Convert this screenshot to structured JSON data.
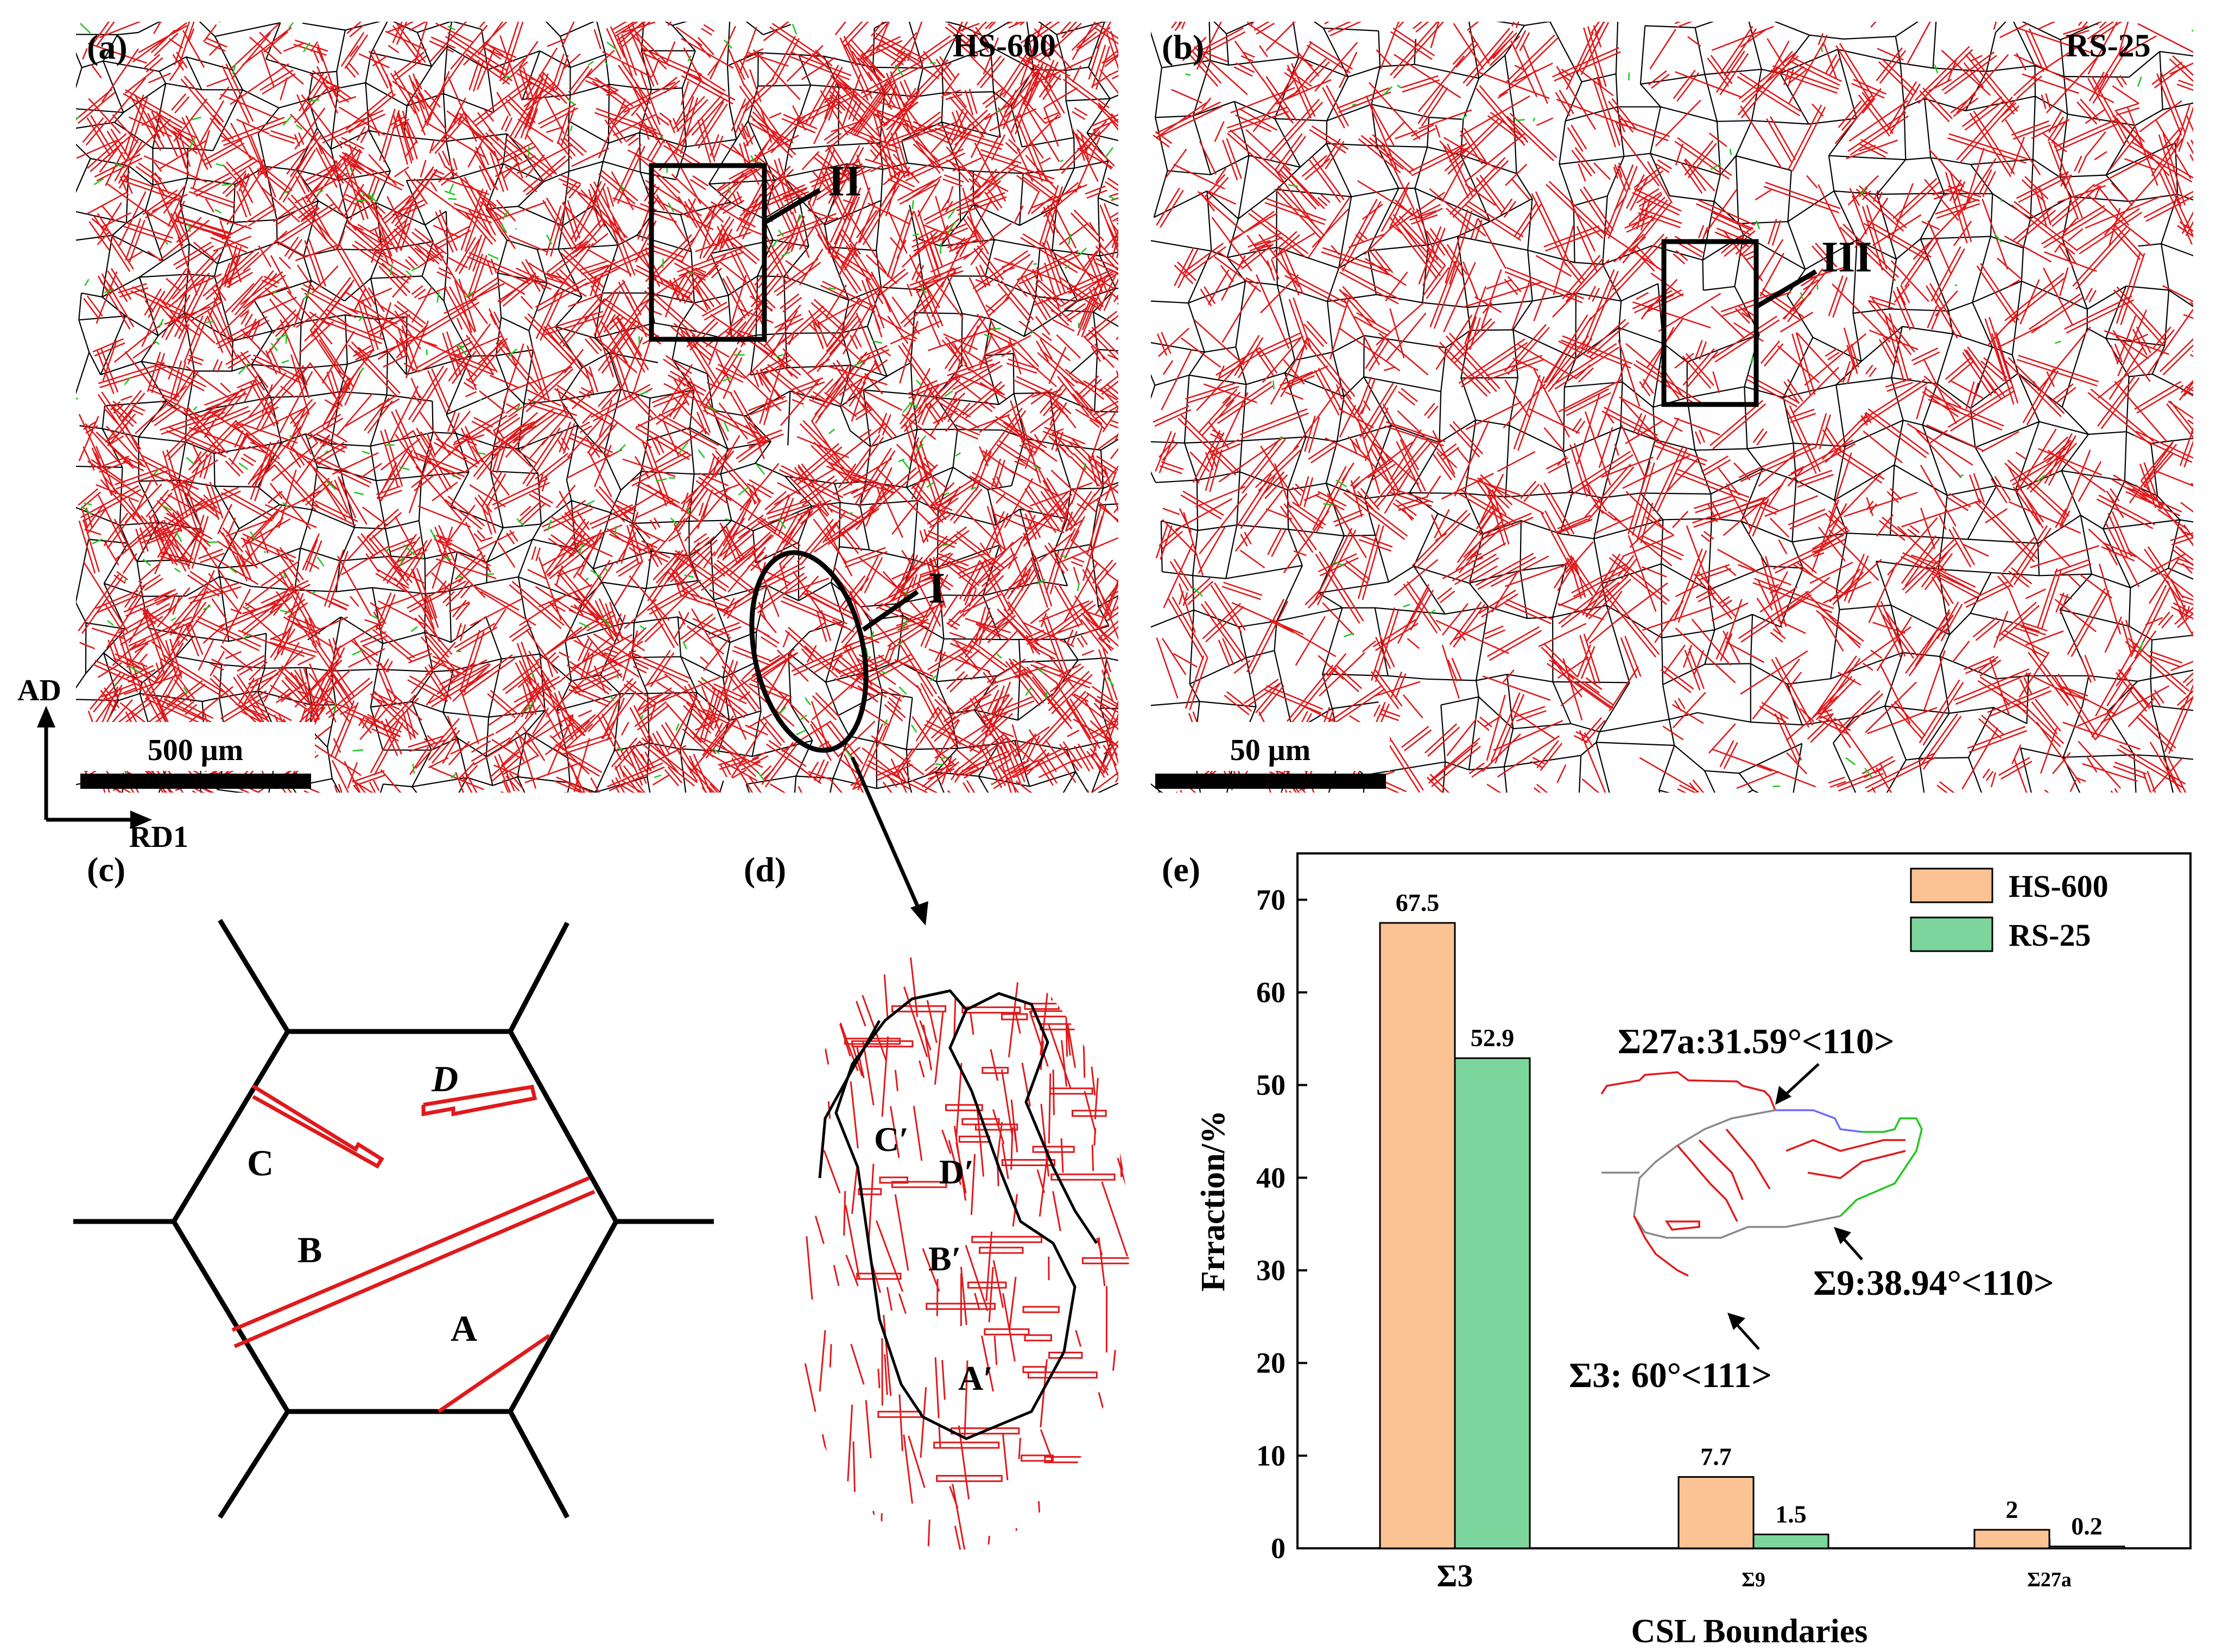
{
  "panels": {
    "a": {
      "label": "(a)",
      "sample": "HS-600",
      "scale": "500 μm",
      "region_I": "I",
      "region_II": "II"
    },
    "b": {
      "label": "(b)",
      "sample": "RS-25",
      "scale": "50 μm",
      "region_III": "III"
    },
    "c": {
      "label": "(c)",
      "twins": [
        "A",
        "B",
        "C",
        "D"
      ]
    },
    "d": {
      "label": "(d)",
      "twins": [
        "A′",
        "B′",
        "C′",
        "D′"
      ]
    },
    "e": {
      "label": "(e)"
    }
  },
  "axes": {
    "vertical": "AD",
    "horizontal": "RD1"
  },
  "annotations": {
    "s27a": "Σ27a:31.59°<110>",
    "s9": "Σ9:38.94°<110>",
    "s3": "Σ3: 60°<111>"
  },
  "colors": {
    "hs600": "#fbc394",
    "rs25": "#7cd69b",
    "twin": "#e0191b",
    "gb": "#000000",
    "s9": "#1ec81e",
    "s27": "#6b6bff"
  },
  "chart_data": {
    "type": "bar",
    "categories": [
      "Σ3",
      "Σ9",
      "Σ27a"
    ],
    "series": [
      {
        "name": "HS-600",
        "values": [
          67.5,
          7.7,
          2
        ]
      },
      {
        "name": "RS-25",
        "values": [
          52.9,
          1.5,
          0.2
        ]
      }
    ],
    "value_labels": [
      [
        "67.5",
        "7.7",
        "2"
      ],
      [
        "52.9",
        "1.5",
        "0.2"
      ]
    ],
    "xlabel": "CSL Boundaries",
    "ylabel": "Frraction/%",
    "ylim": [
      0,
      75
    ],
    "yticks": [
      0,
      10,
      20,
      30,
      40,
      50,
      60,
      70
    ],
    "legend": "top-right"
  }
}
